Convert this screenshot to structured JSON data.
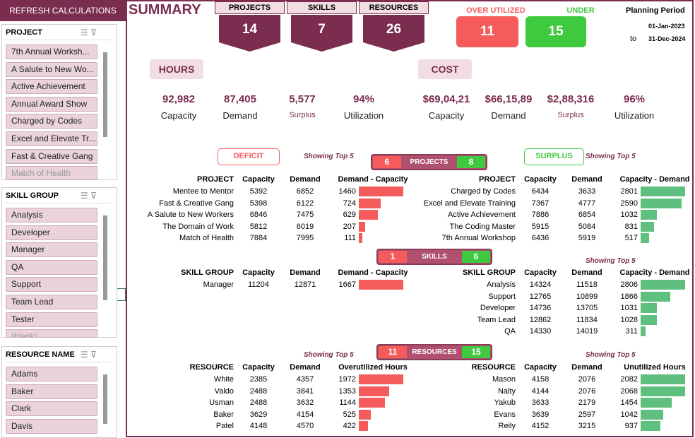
{
  "sidebar": {
    "refresh": "REFRESH CALCULATIONS",
    "slicers": [
      {
        "title": "PROJECT",
        "items": [
          "7th Annual Worksh...",
          "A Salute to New Wo...",
          "Active Achievement",
          "Annual Award Show",
          "Charged by Codes",
          "Excel and Elevate Tr...",
          "Fast & Creative Gang",
          "Match of Health"
        ]
      },
      {
        "title": "SKILL GROUP",
        "items": [
          "Analysis",
          "Developer",
          "Manager",
          "QA",
          "Support",
          "Team Lead",
          "Tester",
          "(blank)"
        ]
      },
      {
        "title": "RESOURCE NAME",
        "items": [
          "Adams",
          "Baker",
          "Clark",
          "Davis"
        ]
      }
    ]
  },
  "header": {
    "title": "SUMMARY",
    "kpis": [
      {
        "label": "PROJECTS",
        "value": 14
      },
      {
        "label": "SKILLS",
        "value": 7
      },
      {
        "label": "RESOURCES",
        "value": 26
      }
    ],
    "over": {
      "label": "OVER UTILIZED",
      "value": 11
    },
    "under": {
      "label": "UNDER",
      "value": 15
    },
    "period": {
      "label": "Planning Period",
      "from": "01-Jan-2023",
      "to_label": "to",
      "to": "31-Dec-2024"
    }
  },
  "hours": {
    "label": "HOURS",
    "metrics": [
      {
        "value": "92,982",
        "label": "Capacity"
      },
      {
        "value": "87,405",
        "label": "Demand"
      },
      {
        "value": "5,577",
        "label": "Surplus"
      },
      {
        "value": "94%",
        "label": "Utilization"
      }
    ]
  },
  "cost": {
    "label": "COST",
    "metrics": [
      {
        "value": "$69,04,21",
        "label": "Capacity"
      },
      {
        "value": "$66,15,89",
        "label": "Demand"
      },
      {
        "value": "$2,88,316",
        "label": "Surplus"
      },
      {
        "value": "96%",
        "label": "Utilization"
      }
    ]
  },
  "deficit_label": "DEFICIT",
  "surplus_label": "SURPLUS",
  "sections": [
    {
      "pill": {
        "left": 6,
        "label": "PROJECTS",
        "right": 8
      },
      "left_table": {
        "note": "Showing Top 5",
        "headers": [
          "PROJECT",
          "Capacity",
          "Demand",
          "Demand - Capacity"
        ],
        "rows": [
          [
            "Mentee to Mentor",
            5392,
            6852,
            1460
          ],
          [
            "Fast & Creative Gang",
            5398,
            6122,
            724
          ],
          [
            "A Salute to New Workers",
            6846,
            7475,
            629
          ],
          [
            "The Domain of Work",
            5812,
            6019,
            207
          ],
          [
            "Match of Health",
            7884,
            7995,
            111
          ]
        ]
      },
      "right_table": {
        "note": "Showing Top 5",
        "headers": [
          "PROJECT",
          "Capacity",
          "Demand",
          "Capacity - Demand"
        ],
        "rows": [
          [
            "Charged by Codes",
            6434,
            3633,
            2801
          ],
          [
            "Excel and Elevate Training",
            7367,
            4777,
            2590
          ],
          [
            "Active Achievement",
            7886,
            6854,
            1032
          ],
          [
            "The Coding Master",
            5915,
            5084,
            831
          ],
          [
            "7th Annual Workshop",
            6436,
            5919,
            517
          ]
        ]
      }
    },
    {
      "pill": {
        "left": 1,
        "label": "SKILLS",
        "right": 6
      },
      "left_table": {
        "headers": [
          "SKILL GROUP",
          "Capacity",
          "Demand",
          "Demand - Capacity"
        ],
        "rows": [
          [
            "Manager",
            11204,
            12871,
            1667
          ]
        ]
      },
      "right_table": {
        "note": "Showing Top 5",
        "headers": [
          "SKILL GROUP",
          "Capacity",
          "Demand",
          "Capacity - Demand"
        ],
        "rows": [
          [
            "Analysis",
            14324,
            11518,
            2806
          ],
          [
            "Support",
            12765,
            10899,
            1866
          ],
          [
            "Developer",
            14736,
            13705,
            1031
          ],
          [
            "Team Lead",
            12862,
            11834,
            1028
          ],
          [
            "QA",
            14330,
            14019,
            311
          ]
        ]
      }
    },
    {
      "pill": {
        "left": 11,
        "label": "RESOURCES",
        "right": 15
      },
      "left_table": {
        "note": "Showing Top 5",
        "headers": [
          "RESOURCE",
          "Capacity",
          "Demand",
          "Overutilized Hours"
        ],
        "rows": [
          [
            "White",
            2385,
            4357,
            1972
          ],
          [
            "Valdo",
            2488,
            3841,
            1353
          ],
          [
            "Usman",
            2488,
            3632,
            1144
          ],
          [
            "Baker",
            3629,
            4154,
            525
          ],
          [
            "Patel",
            4148,
            4570,
            422
          ]
        ]
      },
      "right_table": {
        "note": "Showing Top 5",
        "headers": [
          "RESOURCE",
          "Capacity",
          "Demand",
          "Unutilized Hours"
        ],
        "rows": [
          [
            "Mason",
            4158,
            2076,
            2082
          ],
          [
            "Nalty",
            4144,
            2076,
            2068
          ],
          [
            "Yakub",
            3633,
            2179,
            1454
          ],
          [
            "Evans",
            3639,
            2597,
            1042
          ],
          [
            "Reily",
            4152,
            3215,
            937
          ]
        ]
      }
    }
  ]
}
